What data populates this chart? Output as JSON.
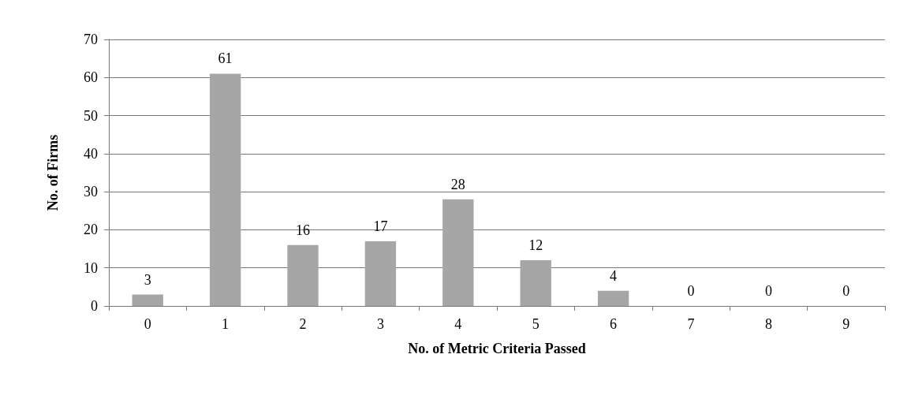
{
  "chart_data": {
    "type": "bar",
    "xlabel": "No. of Metric Criteria Passed",
    "ylabel": "No. of Firms",
    "categories": [
      "0",
      "1",
      "2",
      "3",
      "4",
      "5",
      "6",
      "7",
      "8",
      "9"
    ],
    "values": [
      3,
      61,
      16,
      17,
      28,
      12,
      4,
      0,
      0,
      0
    ],
    "color": "#a6a6a6",
    "data_labels": true,
    "ylim": [
      0,
      70
    ],
    "yticks": [
      0,
      10,
      20,
      30,
      40,
      50,
      60,
      70
    ],
    "grid": "y"
  }
}
